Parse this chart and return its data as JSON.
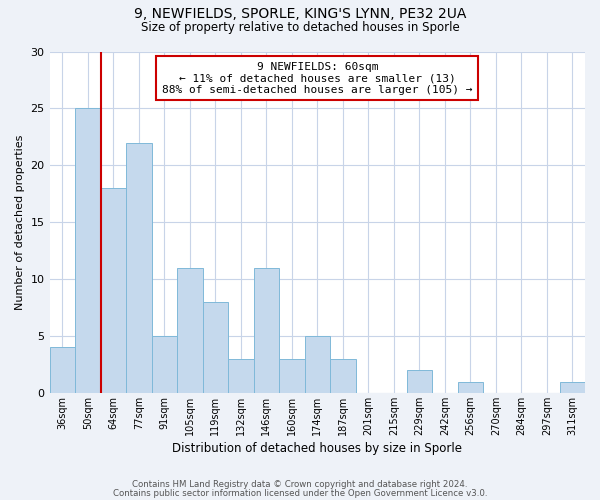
{
  "title_line1": "9, NEWFIELDS, SPORLE, KING'S LYNN, PE32 2UA",
  "title_line2": "Size of property relative to detached houses in Sporle",
  "xlabel": "Distribution of detached houses by size in Sporle",
  "ylabel": "Number of detached properties",
  "bar_labels": [
    "36sqm",
    "50sqm",
    "64sqm",
    "77sqm",
    "91sqm",
    "105sqm",
    "119sqm",
    "132sqm",
    "146sqm",
    "160sqm",
    "174sqm",
    "187sqm",
    "201sqm",
    "215sqm",
    "229sqm",
    "242sqm",
    "256sqm",
    "270sqm",
    "284sqm",
    "297sqm",
    "311sqm"
  ],
  "bar_values": [
    4,
    25,
    18,
    22,
    5,
    11,
    8,
    3,
    11,
    3,
    5,
    3,
    0,
    0,
    2,
    0,
    1,
    0,
    0,
    0,
    1
  ],
  "bar_color": "#c5d9ed",
  "bar_edge_color": "#7fb9d9",
  "marker_line_color": "#cc0000",
  "annotation_line1": "9 NEWFIELDS: 60sqm",
  "annotation_line2": "← 11% of detached houses are smaller (13)",
  "annotation_line3": "88% of semi-detached houses are larger (105) →",
  "ylim": [
    0,
    30
  ],
  "yticks": [
    0,
    5,
    10,
    15,
    20,
    25,
    30
  ],
  "footer_line1": "Contains HM Land Registry data © Crown copyright and database right 2024.",
  "footer_line2": "Contains public sector information licensed under the Open Government Licence v3.0.",
  "background_color": "#eef2f8",
  "plot_background_color": "#ffffff",
  "grid_color": "#c8d4e8"
}
